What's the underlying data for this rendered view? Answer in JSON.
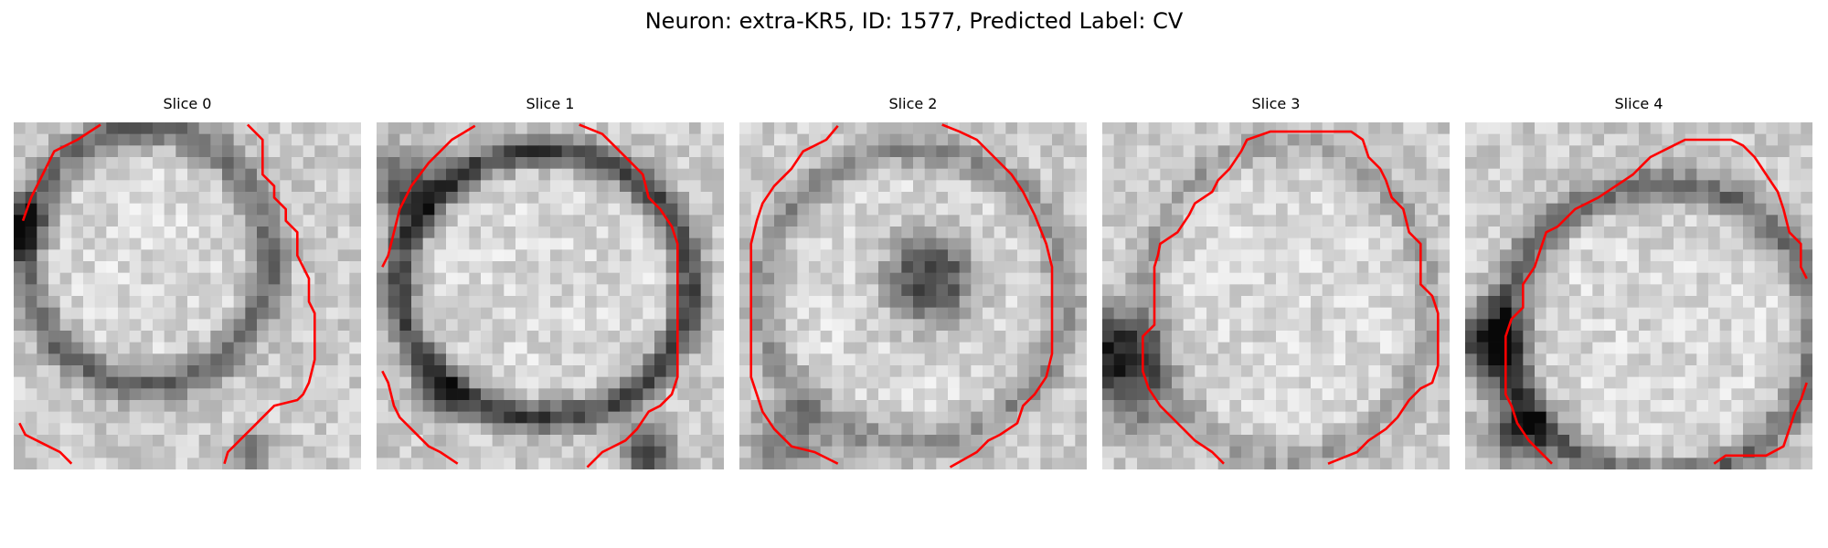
{
  "figure": {
    "title": "Neuron: extra-KR5, ID: 1577, Predicted Label: CV"
  },
  "slices": [
    {
      "label": "Slice 0"
    },
    {
      "label": "Slice 1"
    },
    {
      "label": "Slice 2"
    },
    {
      "label": "Slice 3"
    },
    {
      "label": "Slice 4"
    }
  ],
  "colors": {
    "contour": "#ff0000",
    "background": "#ffffff"
  },
  "colormap": "grayscale"
}
